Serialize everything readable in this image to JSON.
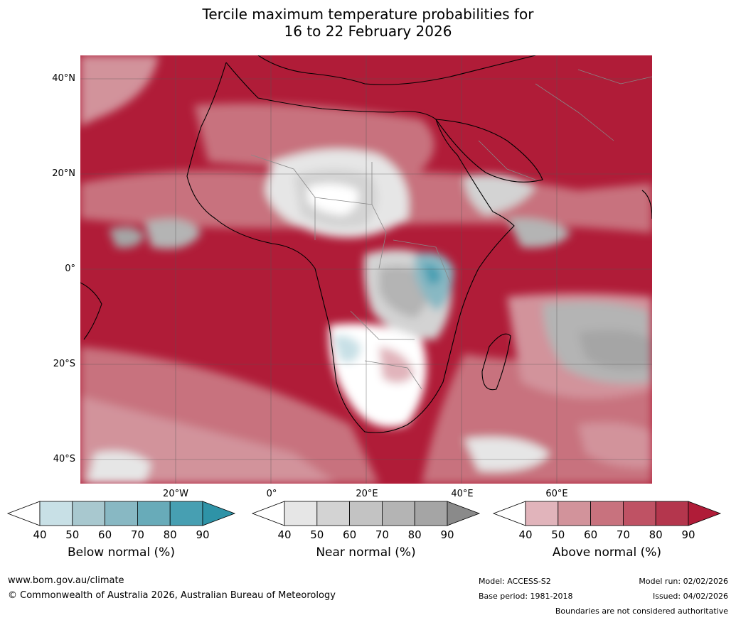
{
  "title": {
    "line1": "Tercile maximum temperature probabilities for",
    "line2": "16 to 22 February 2026"
  },
  "map": {
    "latitude_labels": [
      "40°N",
      "20°N",
      "0°",
      "20°S",
      "40°S"
    ],
    "longitude_labels": [
      "20°W",
      "0°",
      "20°E",
      "40°E",
      "60°E"
    ]
  },
  "colorbars": [
    {
      "label": "Below normal (%)",
      "ticks": [
        "40",
        "50",
        "60",
        "70",
        "80",
        "90"
      ],
      "colors": [
        "#ffffff",
        "#c8e0e6",
        "#a8c8cf",
        "#88b8c3",
        "#68abb9",
        "#479fb2",
        "#2e93a7"
      ]
    },
    {
      "label": "Near normal (%)",
      "ticks": [
        "40",
        "50",
        "60",
        "70",
        "80",
        "90"
      ],
      "colors": [
        "#ffffff",
        "#e6e6e6",
        "#d3d3d3",
        "#c3c3c3",
        "#b4b4b4",
        "#a5a5a5",
        "#8a8a8a"
      ]
    },
    {
      "label": "Above normal (%)",
      "ticks": [
        "40",
        "50",
        "60",
        "70",
        "80",
        "90"
      ],
      "colors": [
        "#ffffff",
        "#e1b4bb",
        "#d2939b",
        "#c8727e",
        "#bf5264",
        "#b4364d",
        "#b01c38"
      ]
    }
  ],
  "footer": {
    "website": "www.bom.gov.au/climate",
    "copyright": "© Commonwealth of Australia 2026, Australian Bureau of Meteorology",
    "model": "Model: ACCESS-S2",
    "base_period": "Base period: 1981-2018",
    "model_run": "Model run: 02/02/2026",
    "issued": "Issued: 04/02/2026",
    "disclaimer": "Boundaries are not considered authoritative"
  }
}
